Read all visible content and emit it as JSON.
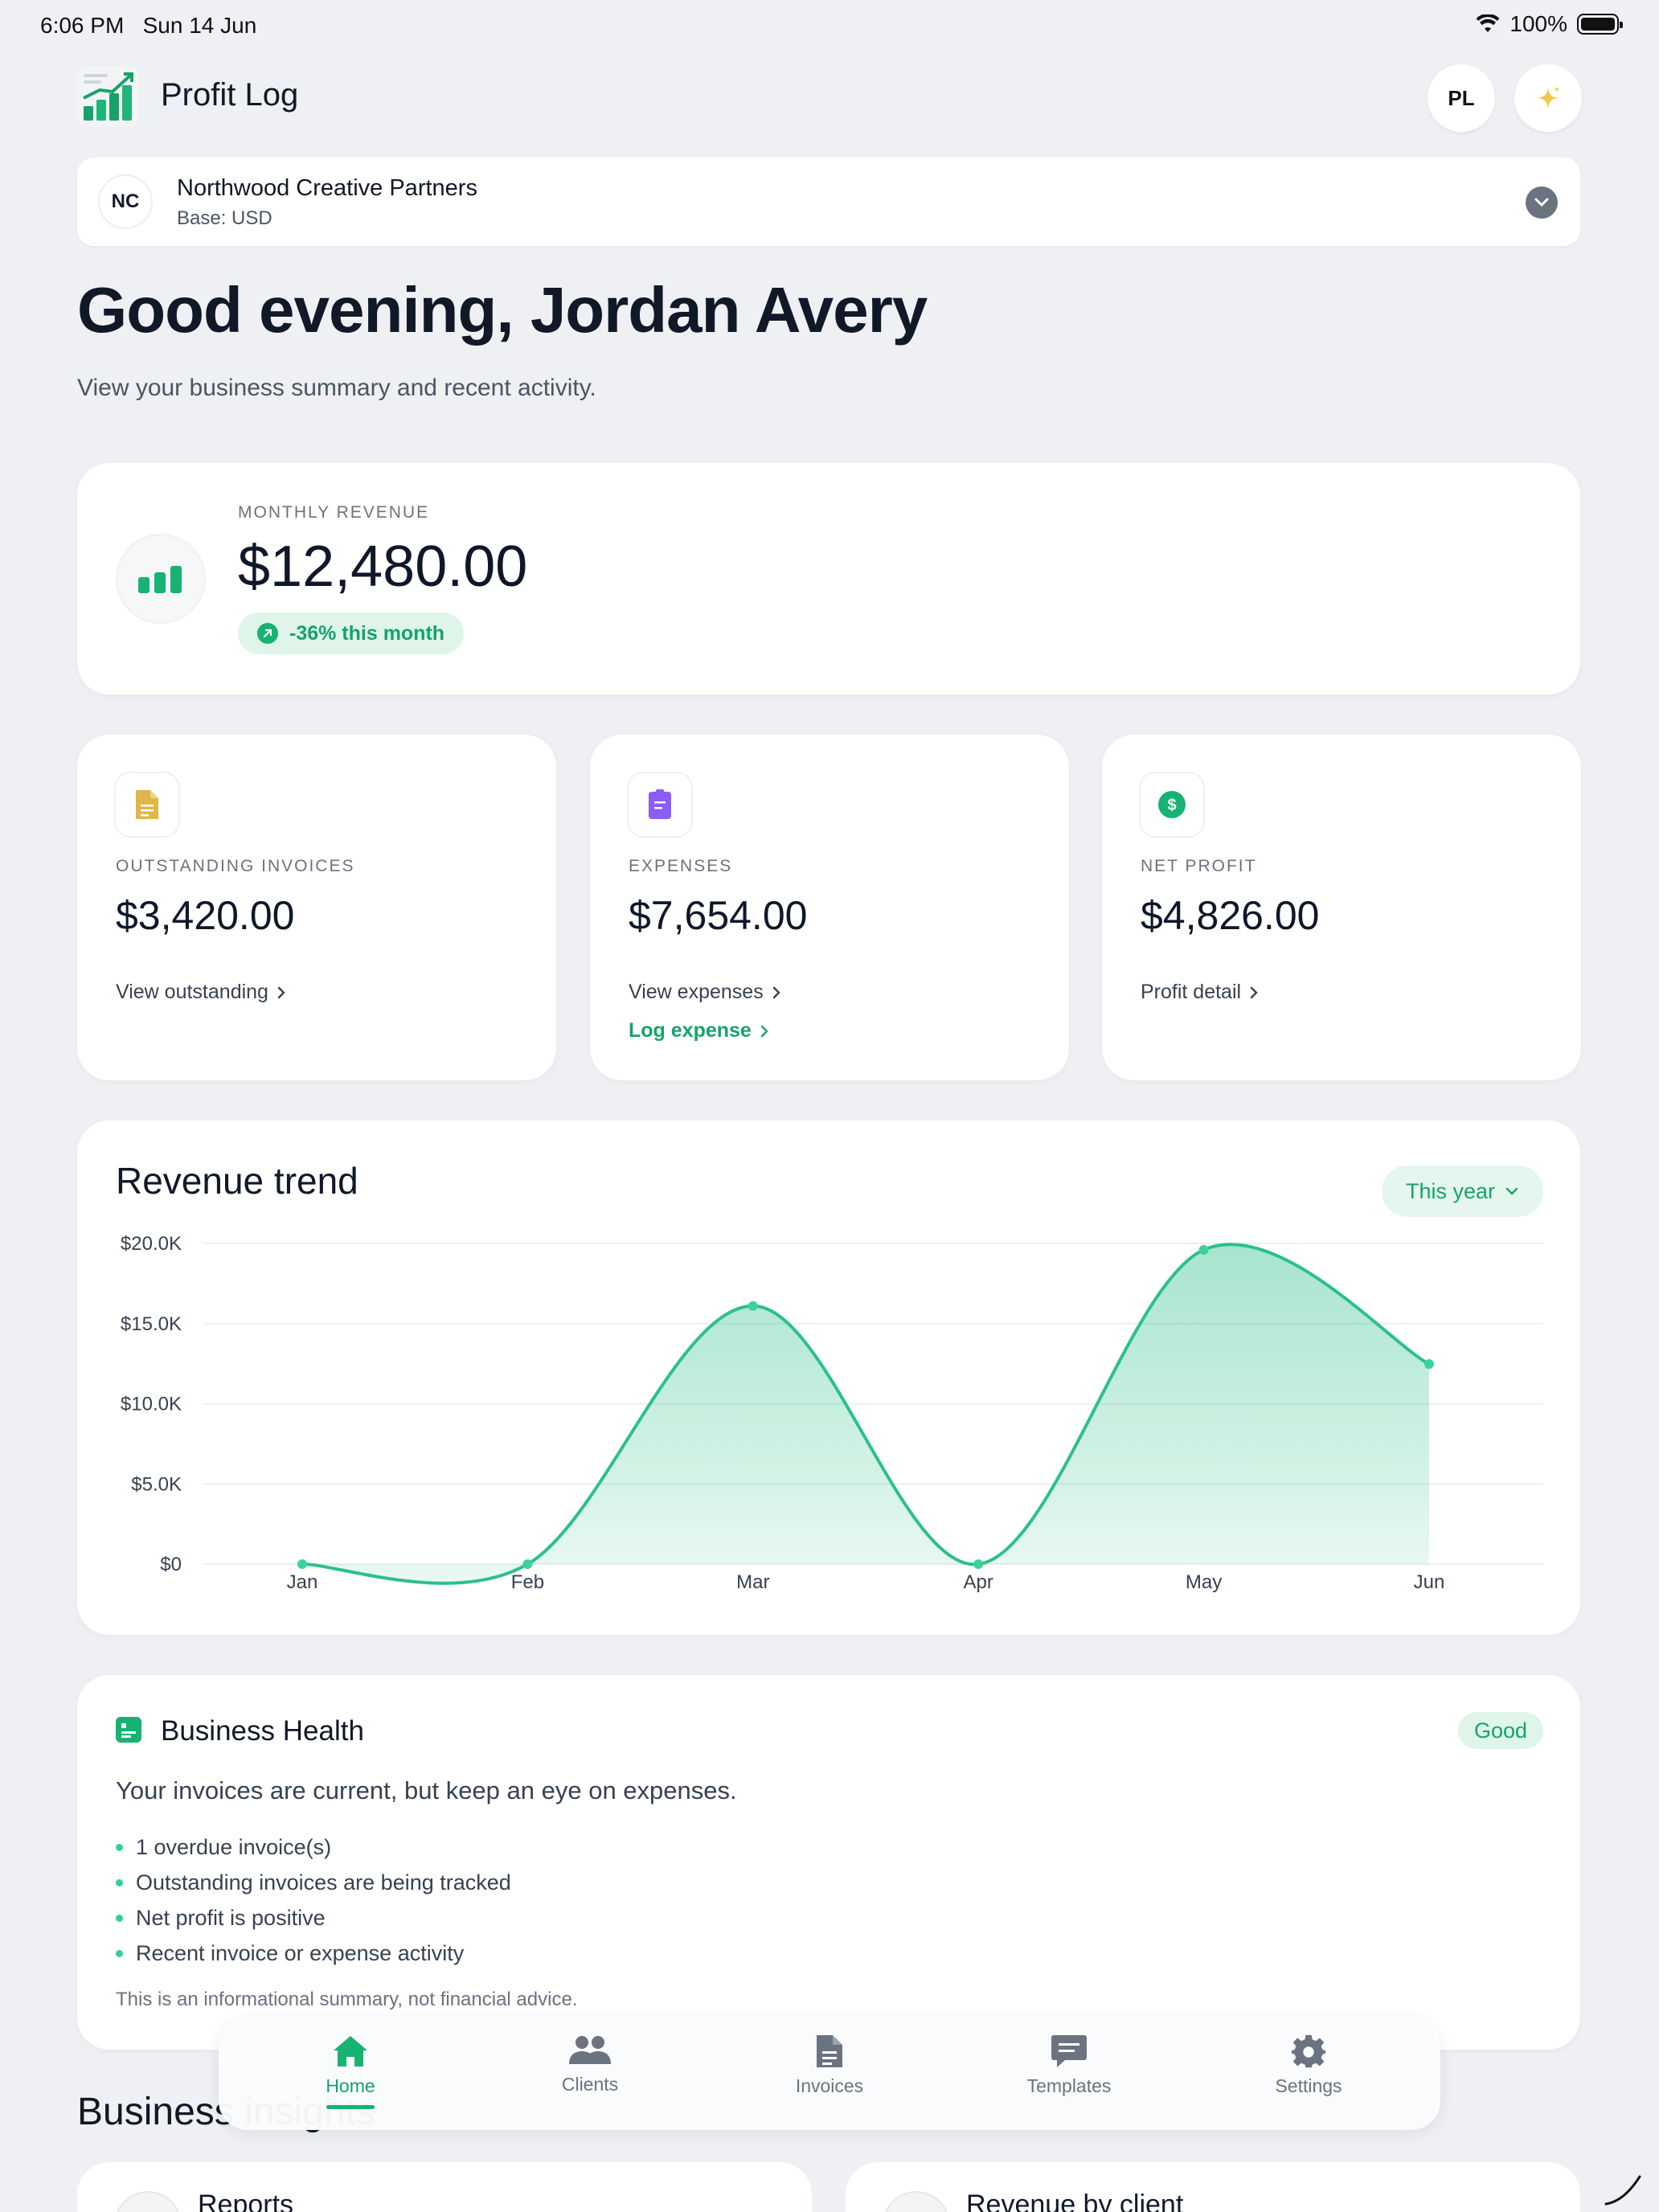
{
  "status_bar": {
    "time": "6:06 PM",
    "date": "Sun 14 Jun",
    "battery": "100%"
  },
  "header": {
    "title": "Profit Log",
    "avatar_initials": "PL",
    "sparkle_icon": "sparkle-icon"
  },
  "business": {
    "initials": "NC",
    "name": "Northwood Creative Partners",
    "base_currency": "Base: USD"
  },
  "greeting": "Good evening, Jordan Avery",
  "subtitle": "View your business summary and recent activity.",
  "monthly_revenue": {
    "label": "MONTHLY REVENUE",
    "value": "$12,480.00",
    "change": "-36% this month"
  },
  "stats": [
    {
      "label": "OUTSTANDING INVOICES",
      "value": "$3,420.00",
      "links": [
        "View outstanding"
      ],
      "icon": "document-icon",
      "color": "#e0b64a"
    },
    {
      "label": "EXPENSES",
      "value": "$7,654.00",
      "links": [
        "View expenses",
        "Log expense"
      ],
      "icon": "receipt-icon",
      "color": "#8b5cf6"
    },
    {
      "label": "NET PROFIT",
      "value": "$4,826.00",
      "links": [
        "Profit detail"
      ],
      "icon": "dollar-icon",
      "color": "#16b373"
    }
  ],
  "revenue_trend": {
    "title": "Revenue trend",
    "range": "This year"
  },
  "chart_data": {
    "type": "area",
    "categories": [
      "Jan",
      "Feb",
      "Mar",
      "Apr",
      "May",
      "Jun"
    ],
    "values": [
      0,
      0,
      16100,
      0,
      19600,
      12480
    ],
    "ylim": [
      0,
      20000
    ],
    "yticks": [
      "$0",
      "$5.0K",
      "$10.0K",
      "$15.0K",
      "$20.0K"
    ],
    "grid": true,
    "color": "#2cc08a"
  },
  "health": {
    "title": "Business Health",
    "status": "Good",
    "summary": "Your invoices are current, but keep an eye on expenses.",
    "items": [
      "1 overdue invoice(s)",
      "Outstanding invoices are being tracked",
      "Net profit is positive",
      "Recent invoice or expense activity"
    ],
    "note": "This is an informational summary, not financial advice."
  },
  "insights": {
    "title": "Business insights",
    "cards": [
      "Reports",
      "Revenue by client"
    ]
  },
  "tabs": [
    {
      "label": "Home",
      "icon": "home-icon",
      "active": true
    },
    {
      "label": "Clients",
      "icon": "users-icon",
      "active": false
    },
    {
      "label": "Invoices",
      "icon": "invoice-icon",
      "active": false
    },
    {
      "label": "Templates",
      "icon": "chat-template-icon",
      "active": false
    },
    {
      "label": "Settings",
      "icon": "gear-icon",
      "active": false
    }
  ]
}
